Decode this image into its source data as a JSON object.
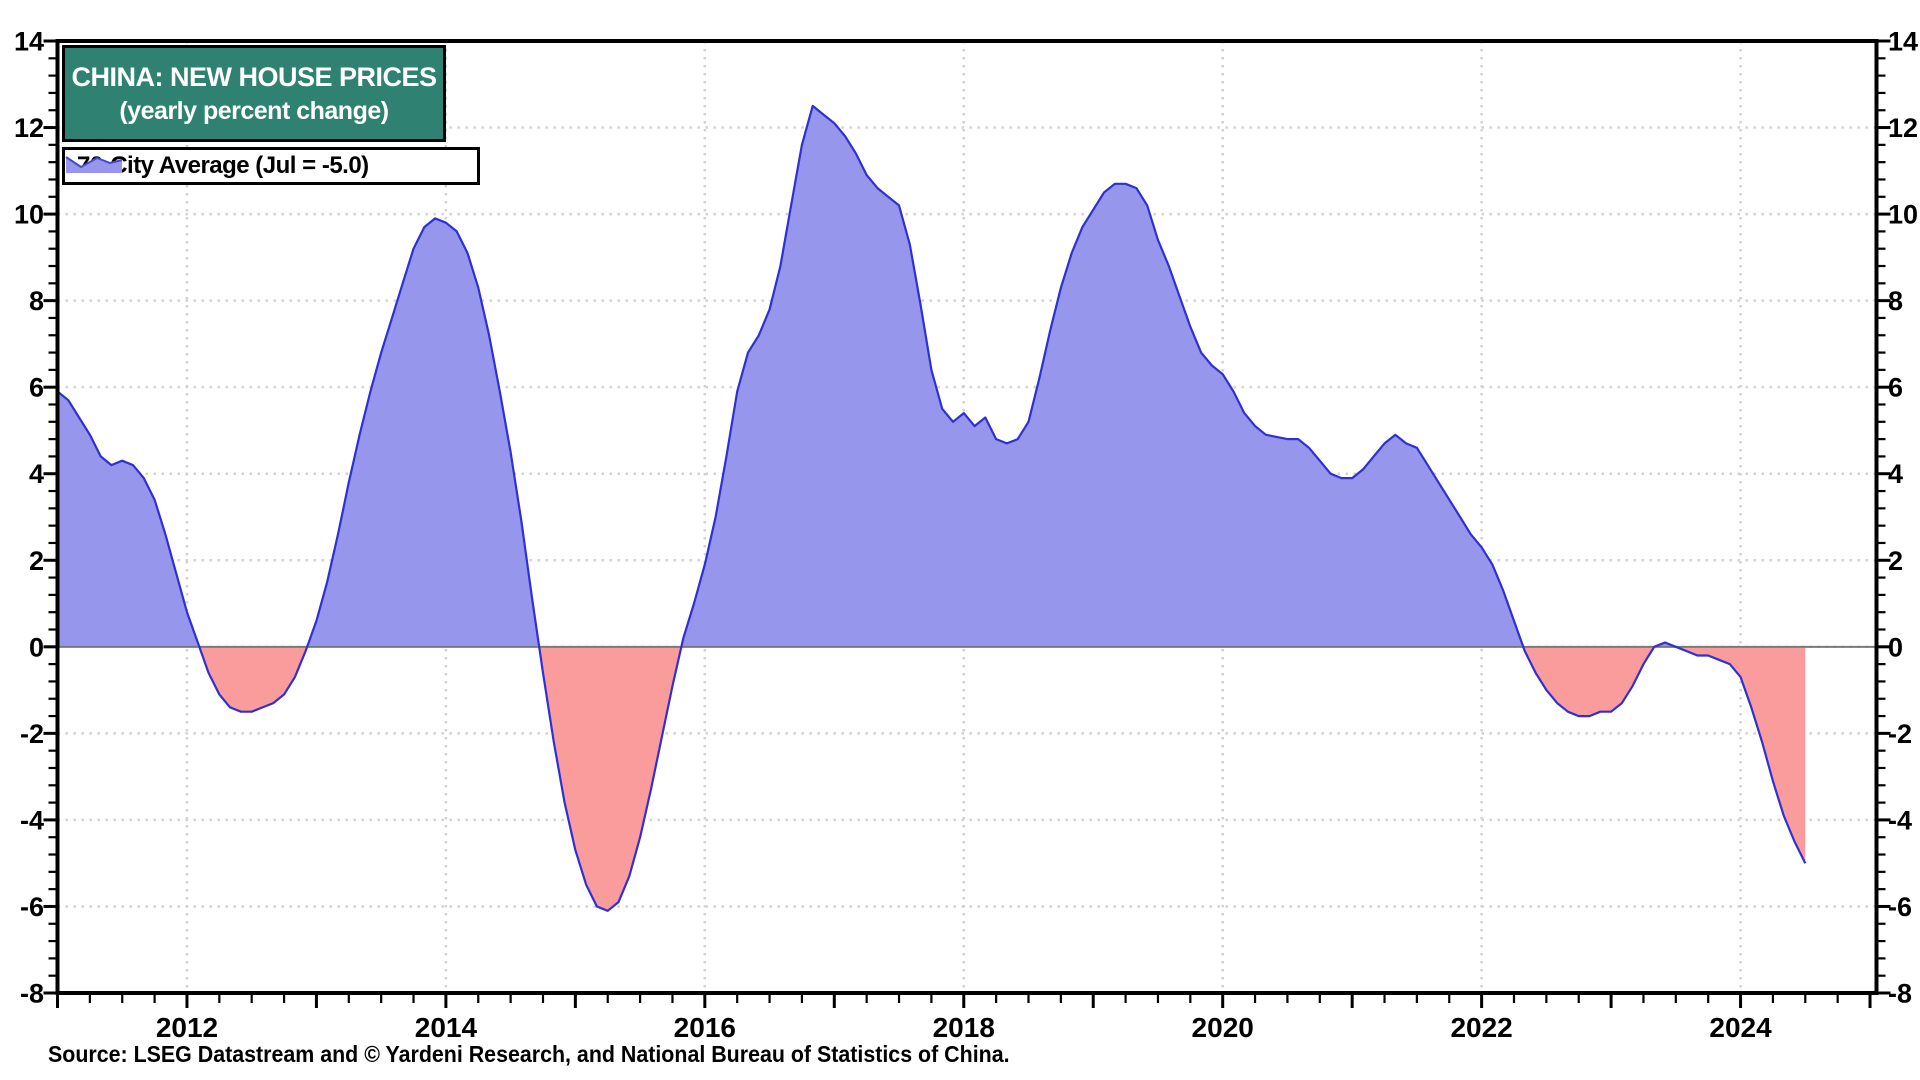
{
  "title": {
    "line1": "CHINA: NEW HOUSE PRICES",
    "line2": "(yearly percent change)"
  },
  "legend": {
    "label": "70-City Average (Jul = -5.0)",
    "swatch_icon": "area-chart-swatch"
  },
  "source": "Source: LSEG Datastream and © Yardeni Research, and National Bureau of Statistics of China.",
  "axes": {
    "y_tick_labels": [
      "14",
      "12",
      "10",
      "8",
      "6",
      "4",
      "2",
      "0",
      "-2",
      "-4",
      "-6",
      "-8"
    ],
    "x_tick_labels": [
      "2012",
      "2014",
      "2016",
      "2018",
      "2020",
      "2022",
      "2024"
    ]
  },
  "colors": {
    "title_bg": "#2F8171",
    "title_text": "#ffffff",
    "positive_fill": "#9697EC",
    "negative_fill": "#FB9C9C",
    "line": "#2E30D6",
    "grid": "#D2D2D2",
    "zero_line": "#7A7A7A",
    "frame": "#000000",
    "label_text": "#000000"
  },
  "chart_data": {
    "type": "area",
    "title": "CHINA: NEW HOUSE PRICES",
    "subtitle": "(yearly percent change)",
    "ylabel": "yearly percent change",
    "legend_position": "top-left",
    "grid": true,
    "xlim": [
      2011.0,
      2025.05
    ],
    "ylim": [
      -8,
      14
    ],
    "y_major_ticks": [
      -8,
      -6,
      -4,
      -2,
      0,
      2,
      4,
      6,
      8,
      10,
      12,
      14
    ],
    "y_minor_step": 0.4,
    "x_major_ticks": [
      2012,
      2014,
      2016,
      2018,
      2020,
      2022,
      2024
    ],
    "x_minor_step": 0.25,
    "last_point": {
      "date": "Jul 2024",
      "value": -5.0
    },
    "series": [
      {
        "name": "70-City Average",
        "start_year": 2011,
        "start_month": 1,
        "frequency": "monthly",
        "values": [
          5.9,
          5.7,
          5.3,
          4.9,
          4.4,
          4.2,
          4.3,
          4.2,
          3.9,
          3.4,
          2.6,
          1.7,
          0.8,
          0.1,
          -0.6,
          -1.1,
          -1.4,
          -1.5,
          -1.5,
          -1.4,
          -1.3,
          -1.1,
          -0.7,
          -0.1,
          0.6,
          1.5,
          2.6,
          3.8,
          4.9,
          5.9,
          6.8,
          7.6,
          8.4,
          9.2,
          9.7,
          9.9,
          9.8,
          9.6,
          9.1,
          8.3,
          7.2,
          5.9,
          4.5,
          2.9,
          1.1,
          -0.6,
          -2.2,
          -3.6,
          -4.7,
          -5.5,
          -6.0,
          -6.1,
          -5.9,
          -5.3,
          -4.4,
          -3.3,
          -2.1,
          -0.9,
          0.2,
          1.0,
          1.9,
          3.0,
          4.4,
          5.9,
          6.8,
          7.2,
          7.8,
          8.8,
          10.2,
          11.6,
          12.5,
          12.3,
          12.1,
          11.8,
          11.4,
          10.9,
          10.6,
          10.4,
          10.2,
          9.3,
          7.9,
          6.4,
          5.5,
          5.2,
          5.4,
          5.1,
          5.3,
          4.8,
          4.7,
          4.8,
          5.2,
          6.2,
          7.3,
          8.3,
          9.1,
          9.7,
          10.1,
          10.5,
          10.7,
          10.7,
          10.6,
          10.2,
          9.4,
          8.8,
          8.1,
          7.4,
          6.8,
          6.5,
          6.3,
          5.9,
          5.4,
          5.1,
          4.9,
          4.85,
          4.8,
          4.8,
          4.6,
          4.3,
          4.0,
          3.9,
          3.9,
          4.1,
          4.4,
          4.7,
          4.9,
          4.7,
          4.6,
          4.2,
          3.8,
          3.4,
          3.0,
          2.6,
          2.3,
          1.9,
          1.3,
          0.6,
          -0.1,
          -0.6,
          -1.0,
          -1.3,
          -1.5,
          -1.6,
          -1.6,
          -1.5,
          -1.5,
          -1.3,
          -0.9,
          -0.4,
          0.0,
          0.1,
          0.0,
          -0.1,
          -0.2,
          -0.2,
          -0.3,
          -0.4,
          -0.7,
          -1.4,
          -2.2,
          -3.1,
          -3.9,
          -4.5,
          -5.0
        ]
      }
    ]
  }
}
